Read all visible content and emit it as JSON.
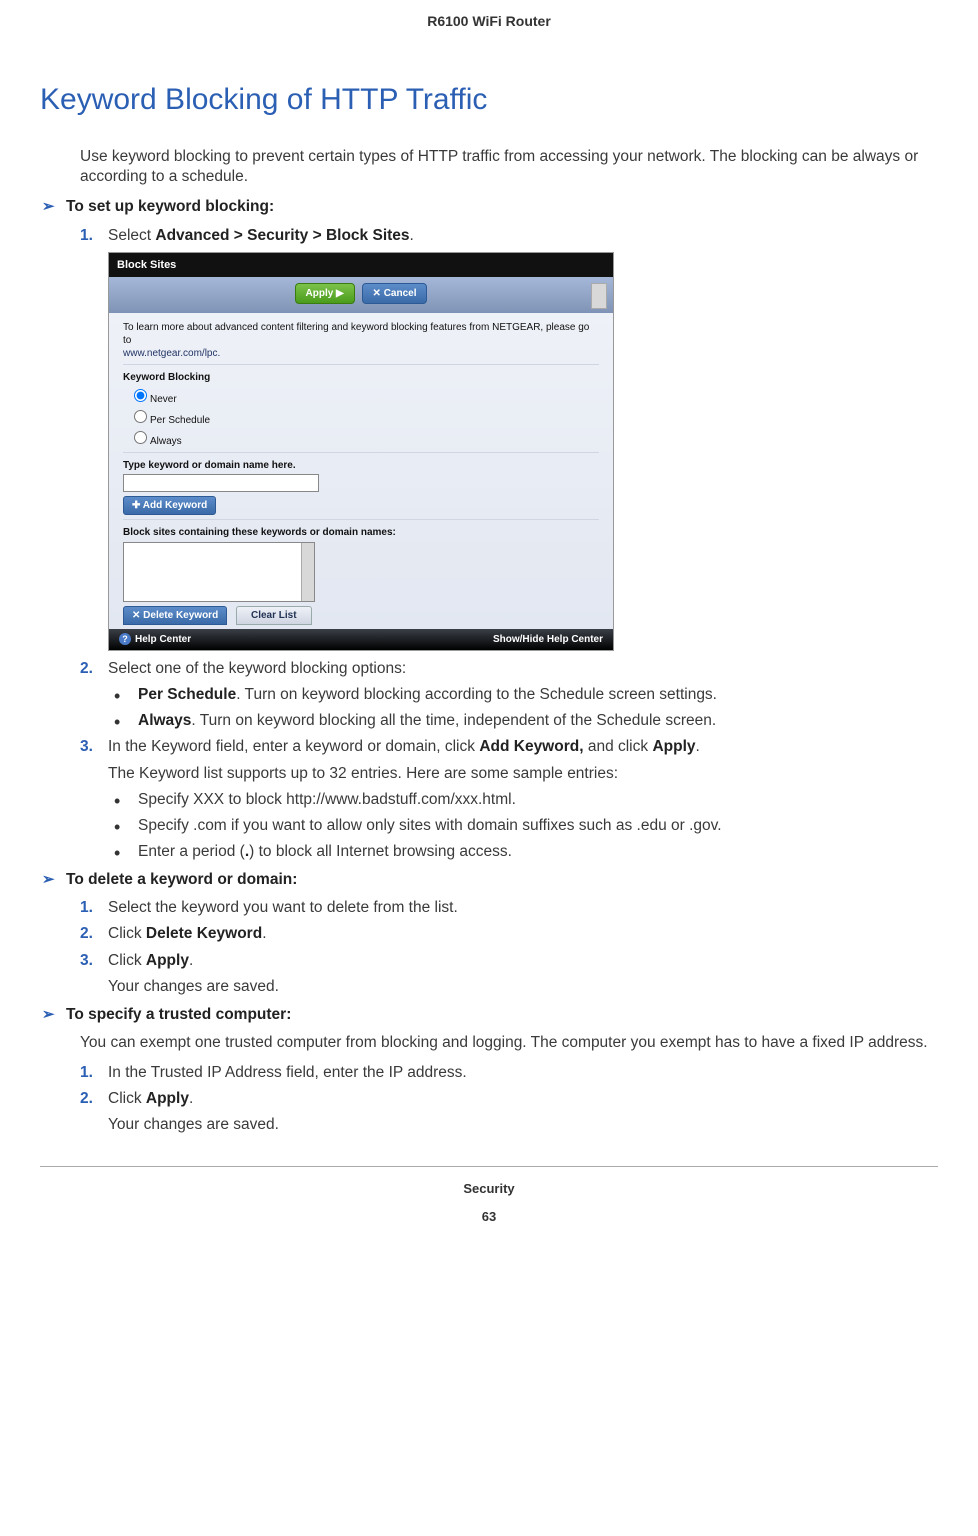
{
  "header": {
    "product": "R6100 WiFi Router"
  },
  "title": "Keyword Blocking of HTTP Traffic",
  "intro": "Use keyword blocking to prevent certain types of HTTP traffic from accessing your network. The blocking can be always or according to a schedule.",
  "proc1": {
    "heading": "To set up keyword blocking:",
    "step1_pre": "Select ",
    "step1_b": "Advanced > Security > Block Sites",
    "step1_post": ".",
    "step2": "Select one of the keyword blocking options:",
    "opt1_b": "Per Schedule",
    "opt1_t": ". Turn on keyword blocking according to the Schedule screen settings.",
    "opt2_b": "Always",
    "opt2_t": ". Turn on keyword blocking all the time, independent of the Schedule screen.",
    "step3_pre": "In the Keyword field, enter a keyword or domain, click ",
    "step3_b1": "Add Keyword,",
    "step3_mid": " and click ",
    "step3_b2": "Apply",
    "step3_post": ".",
    "step3_note": "The Keyword list supports up to 32 entries. Here are some sample entries:",
    "samp1": "Specify XXX to block http://www.badstuff.com/xxx.html.",
    "samp2": "Specify .com if you want to allow only sites with domain suffixes such as .edu or .gov.",
    "samp3_a": "Enter a period (",
    "samp3_b": ".",
    "samp3_c": ") to block all Internet browsing access."
  },
  "proc2": {
    "heading": "To delete a keyword or domain:",
    "s1": "Select the keyword you want to delete from the list.",
    "s2a": "Click ",
    "s2b": "Delete Keyword",
    "s2c": ".",
    "s3a": "Click ",
    "s3b": "Apply",
    "s3c": ".",
    "s3note": "Your changes are saved."
  },
  "proc3": {
    "heading": "To specify a trusted computer:",
    "intro": "You can exempt one trusted computer from blocking and logging. The computer you exempt has to have a fixed IP address.",
    "s1": "In the Trusted IP Address field, enter the IP address.",
    "s2a": "Click ",
    "s2b": "Apply",
    "s2c": ".",
    "s2note": "Your changes are saved."
  },
  "footer": {
    "section": "Security",
    "page": "63"
  },
  "screenshot": {
    "title": "Block Sites",
    "apply": "Apply ▶",
    "cancel": "✕ Cancel",
    "info1": "To learn more about advanced content filtering and keyword blocking features from NETGEAR, please go to",
    "info2": "www.netgear.com/lpc.",
    "kb_label": "Keyword Blocking",
    "rb_never": "Never",
    "rb_sched": "Per Schedule",
    "rb_always": "Always",
    "type_label": "Type keyword or domain name here.",
    "add_kw": "✚ Add Keyword",
    "block_label": "Block sites containing these keywords or domain names:",
    "del_kw": "✕ Delete Keyword",
    "clr": "Clear List",
    "help": "Help Center",
    "showhide": "Show/Hide Help Center"
  }
}
